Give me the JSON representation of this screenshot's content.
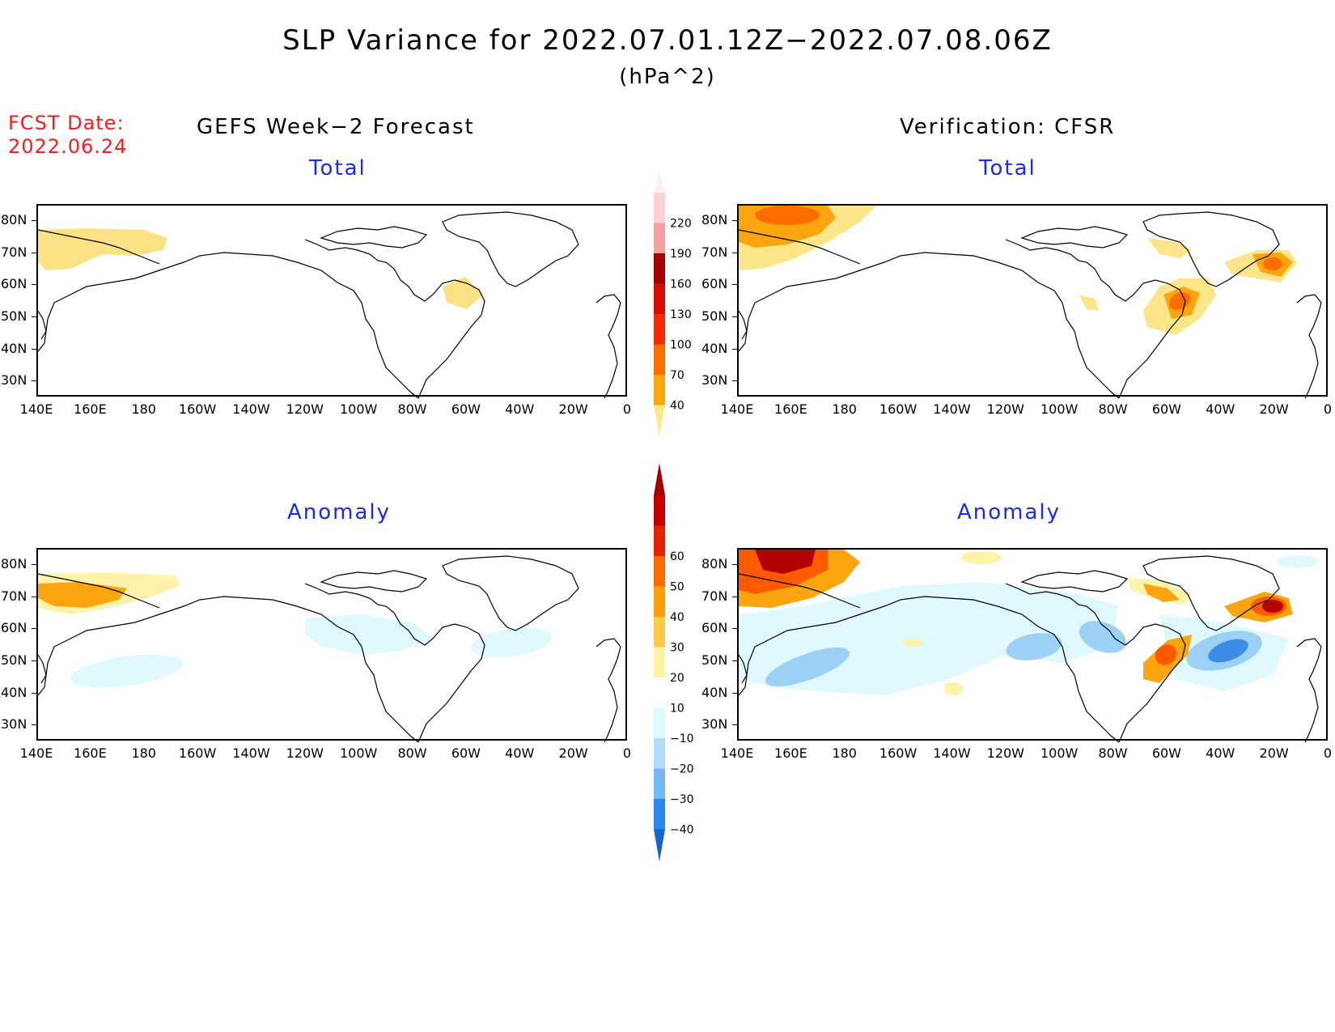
{
  "title": "SLP Variance for 2022.07.01.12Z−2022.07.08.06Z",
  "units": "(hPa^2)",
  "fcst_date": {
    "label": "FCST Date:",
    "value": "2022.06.24"
  },
  "left_column_title": "GEFS Week−2 Forecast",
  "right_column_title": "Verification: CFSR",
  "panels": [
    {
      "id": "forecast-total",
      "subtitle": "Total"
    },
    {
      "id": "verification-total",
      "subtitle": "Total"
    },
    {
      "id": "forecast-anomaly",
      "subtitle": "Anomaly"
    },
    {
      "id": "verification-anomaly",
      "subtitle": "Anomaly"
    }
  ],
  "lat_labels": [
    "80N",
    "70N",
    "60N",
    "50N",
    "40N",
    "30N"
  ],
  "lon_labels": [
    "140E",
    "160E",
    "180",
    "160W",
    "140W",
    "120W",
    "100W",
    "80W",
    "60W",
    "40W",
    "20W",
    "0"
  ],
  "total_colorbar": {
    "labels": [
      "40",
      "70",
      "100",
      "130",
      "160",
      "190",
      "220"
    ],
    "colors": [
      "#fee889",
      "#fda50f",
      "#ff6d00",
      "#f42a00",
      "#d60e00",
      "#a50000",
      "#f2a0a2",
      "#fbd1d3",
      "#fff0f0"
    ]
  },
  "anomaly_colorbar": {
    "labels": [
      "−40",
      "−30",
      "−20",
      "−10",
      "10",
      "20",
      "30",
      "40",
      "50",
      "60"
    ],
    "colors": [
      "#1565d0",
      "#2b88ef",
      "#75b8f6",
      "#b3dcfb",
      "#e0f8ff",
      "#ffffff",
      "#fff3a9",
      "#ffc84a",
      "#ff9f0d",
      "#ff6a00",
      "#e42200",
      "#c20000",
      "#a10000"
    ]
  },
  "fields": {
    "forecast_total_color": "#fce285",
    "verification_light": "#fde689",
    "verification_mid": "#fda50f",
    "verification_strong": "#ff6d00",
    "verification_dark": "#c81400",
    "anomaly_light_blue": "#e0f8ff",
    "anomaly_mid_blue": "#9cd0f7",
    "anomaly_blue": "#3d8de8",
    "anomaly_yellow": "#fff3a9",
    "anomaly_orange": "#fda50f",
    "anomaly_red": "#ff5a00",
    "anomaly_darkred": "#b40000"
  }
}
